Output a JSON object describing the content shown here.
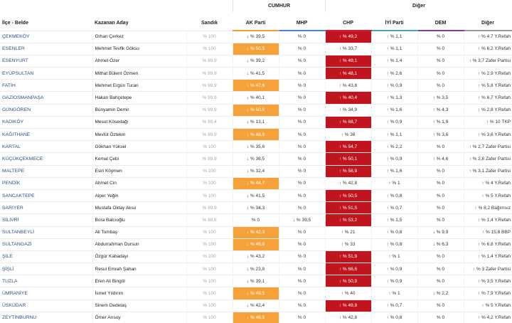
{
  "groups": {
    "cumhur": "CUMHUR",
    "diger": "Diğer"
  },
  "headers": {
    "ilce": "İlçe - Belde",
    "aday": "Kazanan Aday",
    "sandik": "Sandık",
    "akp": "AK Parti",
    "mhp": "MHP",
    "chp": "CHP",
    "iyi": "İYİ Parti",
    "dem": "DEM",
    "diger": "Diğer"
  },
  "colors": {
    "akp_win": "#f6a23b",
    "chp_win": "#c0151f",
    "akp_header": "#f29b3c",
    "mhp_header": "#4a86c9",
    "chp_header": "#c8232c",
    "iyi_header": "#4aa6c9",
    "dem_header": "#7c3f9a",
    "district_link": "#2a4f86"
  },
  "rows": [
    {
      "ilce": "ÇEKMEKÖY",
      "aday": "Orhan Çerkez",
      "sandik": "% 100",
      "akp": "↓ % 39,5",
      "mhp": "% 0",
      "chp": "↑ % 49,2",
      "iyi": "↑ % 1,1",
      "dem": "% 0",
      "diger": "↑ % 4,7 Y.Refah",
      "winner": "chp"
    },
    {
      "ilce": "ESENLER",
      "aday": "Mehmet Tevfik Göksu",
      "sandik": "% 100",
      "akp": "↓ % 50,5",
      "mhp": "% 0",
      "chp": "↑ % 33,7",
      "iyi": "↑ % 1,1",
      "dem": "% 0",
      "diger": "↑ % 6,2 Y.Refah",
      "winner": "akp"
    },
    {
      "ilce": "ESENYURT",
      "aday": "Ahmet Özer",
      "sandik": "% 99,9",
      "akp": "↓ % 39,2",
      "mhp": "% 0",
      "chp": "↑ % 49,1",
      "iyi": "↑ % 1,4",
      "dem": "% 0",
      "diger": "↑ % 3,7 Zafer Partisi",
      "winner": "chp"
    },
    {
      "ilce": "EYÜPSULTAN",
      "aday": "Mithat Bülent Özmen",
      "sandik": "% 99,9",
      "akp": "↓ % 41,5",
      "mhp": "% 0",
      "chp": "↑ % 48,1",
      "iyi": "↑ % 2,6",
      "dem": "% 0",
      "diger": "↑ % 2,9 Y.Refah",
      "winner": "chp"
    },
    {
      "ilce": "FATİH",
      "aday": "Mehmet Ergün Turan",
      "sandik": "% 99,9",
      "akp": "↓ % 47,6",
      "mhp": "% 0",
      "chp": "↑ % 43,8",
      "iyi": "↑ % 0,9",
      "dem": "% 0",
      "diger": "↑ % 5,8 Y.Refah",
      "winner": "akp"
    },
    {
      "ilce": "GAZİOSMANPAŞA",
      "aday": "Hakan Bahçetepe",
      "sandik": "% 99,9",
      "akp": "↓ % 40,1",
      "mhp": "% 0",
      "chp": "↑ % 40,4",
      "iyi": "↑ % 1,3",
      "dem": "↑ % 3,5",
      "diger": "↑ % 6,7 Y.Refah",
      "winner": "chp"
    },
    {
      "ilce": "GÜNGÖREN",
      "aday": "Bünyamin Demir",
      "sandik": "% 99,9",
      "akp": "↓ % 50,9",
      "mhp": "% 0",
      "chp": "↑ % 34,9",
      "iyi": "↑ % 1,6",
      "dem": "↑ % 4,3",
      "diger": "↑ % 2,8 Y.Refah",
      "winner": "akp"
    },
    {
      "ilce": "KADIKÖY",
      "aday": "Mesut Kösedağı",
      "sandik": "% 99,4",
      "akp": "↓ % 13,1",
      "mhp": "% 0",
      "chp": "↑ % 68,7",
      "iyi": "↑ % 0,9",
      "dem": "↑ % 1,9",
      "diger": "↑ % 10 TKP",
      "winner": "chp"
    },
    {
      "ilce": "KAĞITHANE",
      "aday": "Mevlüt Öztekin",
      "sandik": "% 99,9",
      "akp": "↓ % 48,9",
      "mhp": "% 0",
      "chp": "↑ % 36",
      "iyi": "↑ % 1,1",
      "dem": "↑ % 3,6",
      "diger": "↑ % 3,6 Y.Refah",
      "winner": "akp"
    },
    {
      "ilce": "KARTAL",
      "aday": "Gökhan Yüksel",
      "sandik": "% 100",
      "akp": "↓ % 35,6",
      "mhp": "% 0",
      "chp": "↑ % 54,7",
      "iyi": "↑ % 2,2",
      "dem": "% 0",
      "diger": "↑ % 2,7 Zafer Partisi",
      "winner": "chp"
    },
    {
      "ilce": "KÜÇÜKÇEKMECE",
      "aday": "Kemal Çebi",
      "sandik": "% 99,9",
      "akp": "↓ % 36,5",
      "mhp": "% 0",
      "chp": "↑ % 50,1",
      "iyi": "↑ % 0,9",
      "dem": "↑ % 4,6",
      "diger": "↑ % 2,8 Zafer Partisi",
      "winner": "chp"
    },
    {
      "ilce": "MALTEPE",
      "aday": "Esin Köymen",
      "sandik": "% 100",
      "akp": "↓ % 32,4",
      "mhp": "% 0",
      "chp": "↑ % 58,9",
      "iyi": "↑ % 1,6",
      "dem": "% 0",
      "diger": "↑ % 3,1 Zafer Partisi",
      "winner": "chp"
    },
    {
      "ilce": "PENDİK",
      "aday": "Ahmet Cin",
      "sandik": "% 100",
      "akp": "↓ % 44,7",
      "mhp": "% 0",
      "chp": "↑ % 42,8",
      "iyi": "↑ % 1",
      "dem": "% 0",
      "diger": "↑ % 4 Y.Refah",
      "winner": "akp"
    },
    {
      "ilce": "SANCAKTEPE",
      "aday": "Alper Yeğin",
      "sandik": "% 100",
      "akp": "↓ % 41,5",
      "mhp": "% 0",
      "chp": "↑ % 50,5",
      "iyi": "↑ % 0,8",
      "dem": "% 0",
      "diger": "↑ % 5 Y.Refah",
      "winner": "chp"
    },
    {
      "ilce": "SARIYER",
      "aday": "Mustafa Oktay Aksu",
      "sandik": "% 99,9",
      "akp": "↓ % 34,3",
      "mhp": "% 0",
      "chp": "↑ % 51,5",
      "iyi": "↑ % 0,7",
      "dem": "% 0",
      "diger": "↑ % 8,2 Bağımsız",
      "winner": "chp"
    },
    {
      "ilce": "SİLİVRİ",
      "aday": "Bora Balcıoğlu",
      "sandik": "% 99,6",
      "akp": "% 0",
      "mhp": "↓ % 39,5",
      "chp": "↑ % 53,2",
      "iyi": "↑ % 1,5",
      "dem": "% 0",
      "diger": "↑ % 1,4 Y.Refah",
      "winner": "chp"
    },
    {
      "ilce": "SULTANBEYLİ",
      "aday": "Ali Tombaş",
      "sandik": "% 100",
      "akp": "↓ % 42,3",
      "mhp": "% 0",
      "chp": "↑ % 21",
      "iyi": "↑ % 0,8",
      "dem": "↓ % 9,9",
      "diger": "↑ % 15,8 BBP",
      "winner": "akp"
    },
    {
      "ilce": "SULTANGAZİ",
      "aday": "Abdurrahman Dursun",
      "sandik": "% 100",
      "akp": "↓ % 46,8",
      "mhp": "% 0",
      "chp": "↑ % 33",
      "iyi": "↑ % 0,8",
      "dem": "↓ % 6,3",
      "diger": "↑ % 6,8 Y.Refah",
      "winner": "akp"
    },
    {
      "ilce": "ŞİLE",
      "aday": "Özgür Kabadayı",
      "sandik": "% 100",
      "akp": "↓ % 43,2",
      "mhp": "% 0",
      "chp": "↑ % 51,9",
      "iyi": "↑ % 1",
      "dem": "% 0",
      "diger": "↑ % 1,4 Y.Refah",
      "winner": "chp"
    },
    {
      "ilce": "ŞİŞLİ",
      "aday": "Resul Emrah Şahan",
      "sandik": "% 100",
      "akp": "↓ % 23,8",
      "mhp": "% 0",
      "chp": "↑ % 66,6",
      "iyi": "↑ % 0,9",
      "dem": "% 0",
      "diger": "↑ % 3 Zafer Partisi",
      "winner": "chp"
    },
    {
      "ilce": "TUZLA",
      "aday": "Eren Ali Bingöl",
      "sandik": "% 100",
      "akp": "↓ % 39,1",
      "mhp": "% 0",
      "chp": "↑ % 50,9",
      "iyi": "↑ % 0,9",
      "dem": "% 0",
      "diger": "↑ % 3,5 Y.Refah",
      "winner": "chp"
    },
    {
      "ilce": "ÜMRANİYE",
      "aday": "İsmet Yıldırım",
      "sandik": "% 100",
      "akp": "↓ % 49,5",
      "mhp": "% 0",
      "chp": "↑ % 40",
      "iyi": "↑ % 1",
      "dem": "↓ % 2,2",
      "diger": "↑ % 7,9 Y.Refah",
      "winner": "akp"
    },
    {
      "ilce": "ÜSKÜDAR",
      "aday": "Sinem Dedetaş",
      "sandik": "% 100",
      "akp": "↓ % 42,4",
      "mhp": "% 0",
      "chp": "↑ % 49,9",
      "iyi": "↑ % 0,7",
      "dem": "% 0",
      "diger": "↑ % 5 Y.Refah",
      "winner": "chp"
    },
    {
      "ilce": "ZEYTİNBURNU",
      "aday": "Ömer Arısoy",
      "sandik": "% 100",
      "akp": "↓ % 46,5",
      "mhp": "% 0",
      "chp": "↑ % 42,8",
      "iyi": "↑ % 0,8",
      "dem": "% 0",
      "diger": "↑ % 4,2 Y.Refah",
      "winner": "akp"
    }
  ]
}
